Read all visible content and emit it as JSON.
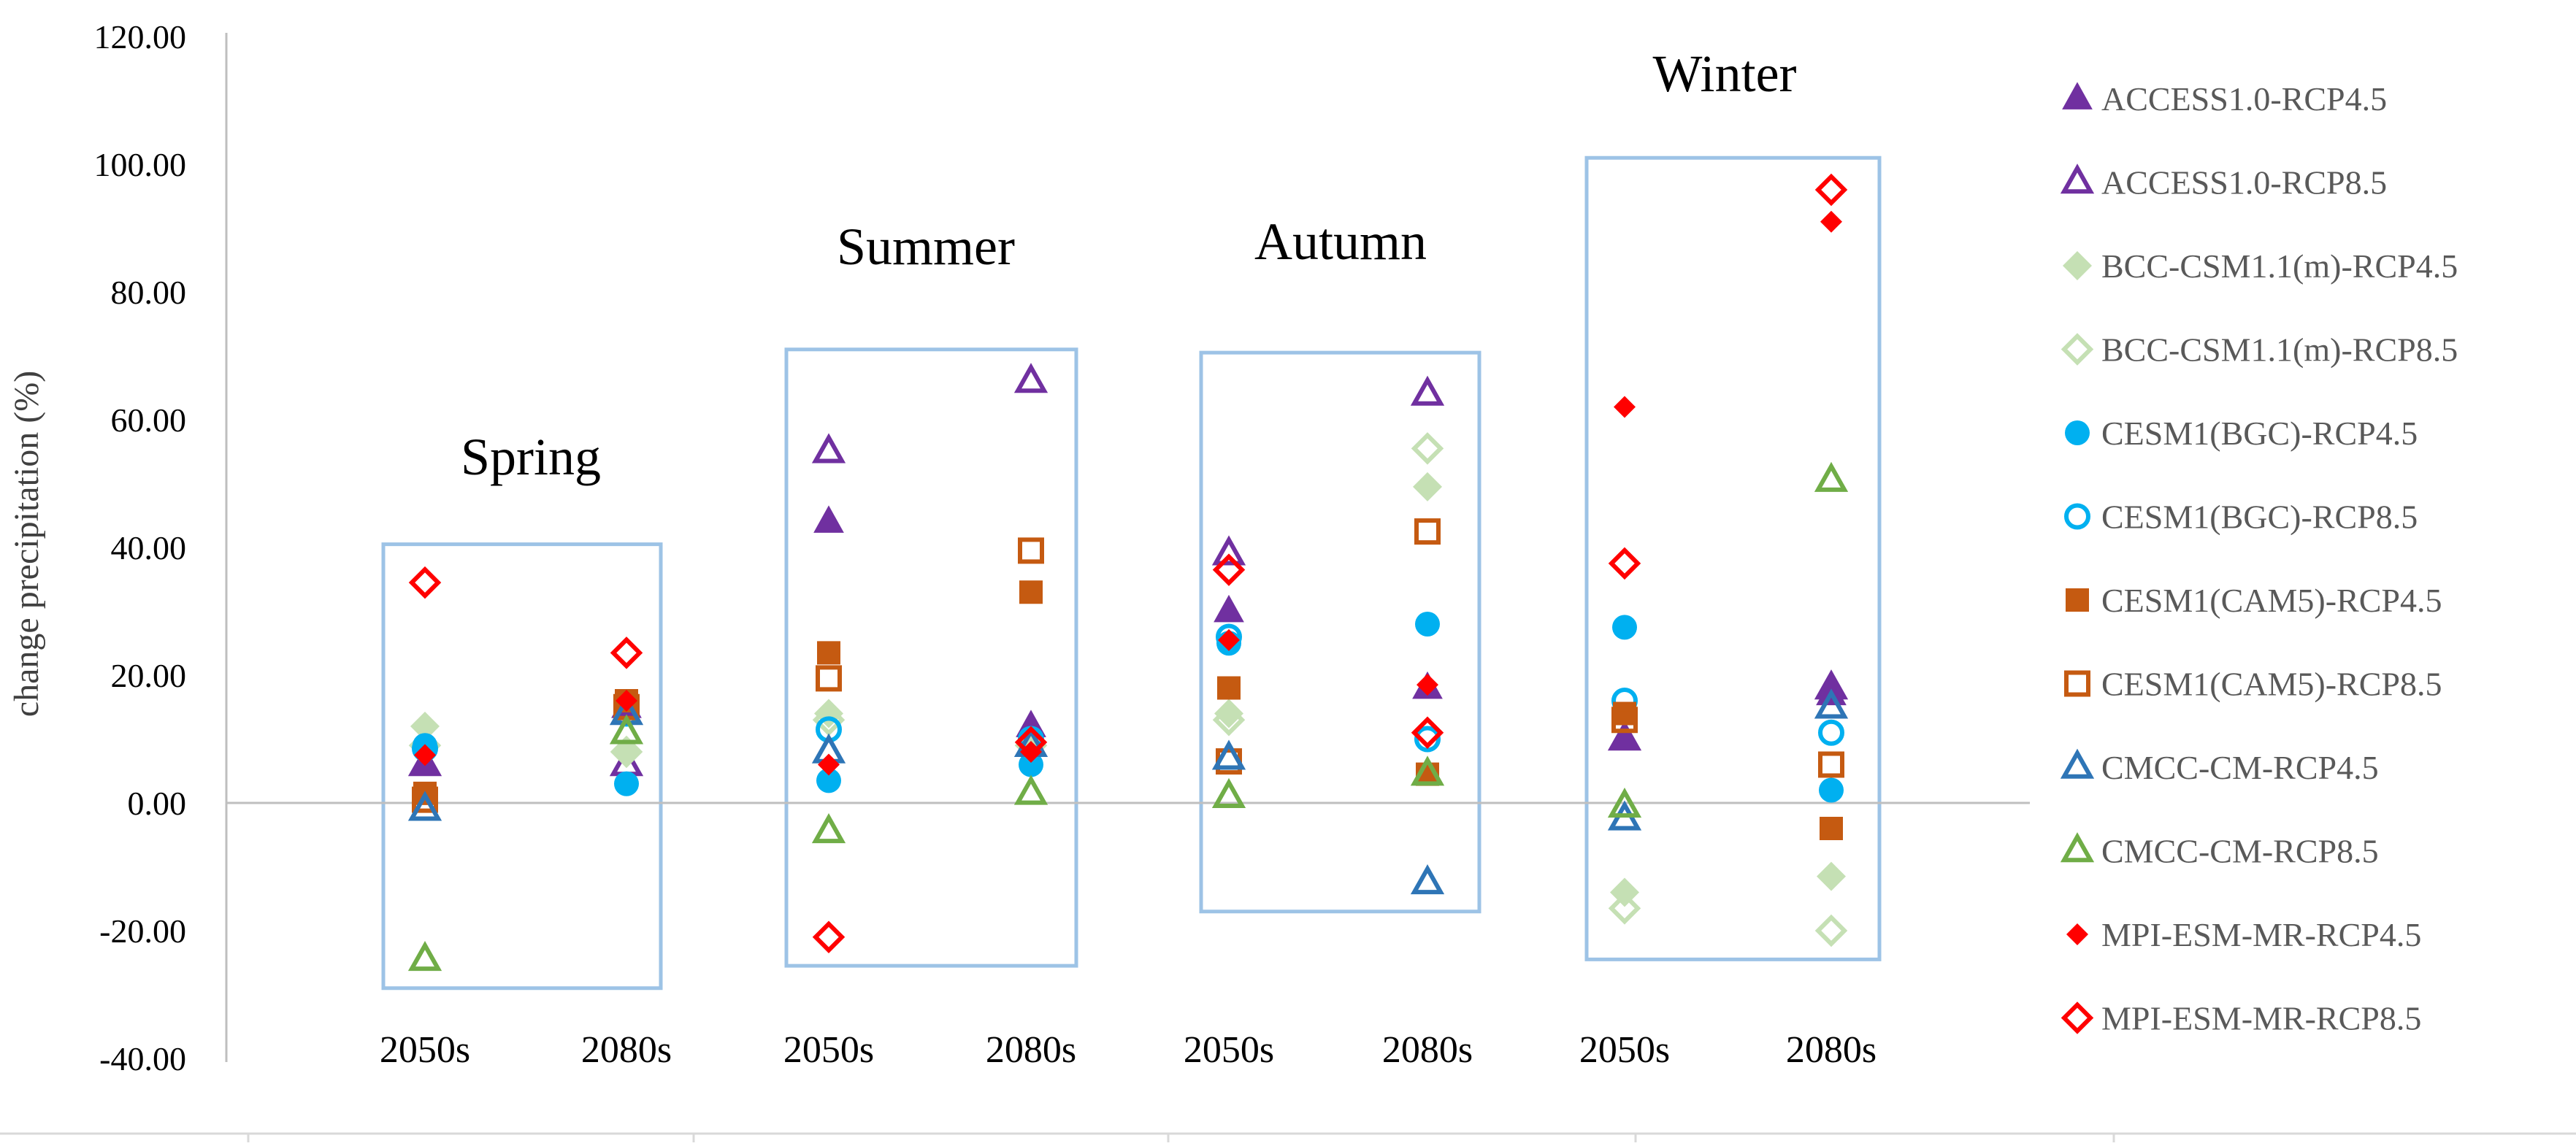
{
  "chart_data": {
    "type": "scatter",
    "title": "",
    "xlabel": "",
    "ylabel": "change precipitation (%)",
    "ylim": [
      -40,
      120
    ],
    "yticks": [
      "-40.00",
      "-20.00",
      "0.00",
      "20.00",
      "40.00",
      "60.00",
      "80.00",
      "100.00",
      "120.00"
    ],
    "grid": false,
    "legend_position": "right",
    "categories": [
      "2050s",
      "2080s",
      "2050s",
      "2080s",
      "2050s",
      "2080s",
      "2050s",
      "2080s"
    ],
    "seasons": [
      "Spring",
      "Summer",
      "Autumn",
      "Winter"
    ],
    "season_boxes": [
      {
        "name": "Spring",
        "range": [
          -29,
          40.5
        ]
      },
      {
        "name": "Summer",
        "range": [
          -25.5,
          71
        ]
      },
      {
        "name": "Autumn",
        "range": [
          -17,
          70.5
        ]
      },
      {
        "name": "Winter",
        "range": [
          -24.5,
          101
        ]
      }
    ],
    "colors": {
      "purple": "#7030a0",
      "green_light": "#c5e0b4",
      "cyan": "#00b0f0",
      "brown": "#c55a11",
      "blue": "#2e75b6",
      "green": "#70ad47",
      "red": "#ff0000",
      "box": "#9dc3e6",
      "axis": "#bfbfbf"
    },
    "series": [
      {
        "name": "ACCESS1.0-RCP4.5",
        "marker": "triangle",
        "filled": true,
        "color": "#7030a0",
        "values": [
          6,
          15,
          44,
          12,
          30,
          18,
          10,
          17
        ]
      },
      {
        "name": "ACCESS1.0-RCP8.5",
        "marker": "triangle",
        "filled": false,
        "color": "#7030a0",
        "values": [
          6,
          6,
          55,
          66,
          39,
          64,
          10,
          18
        ]
      },
      {
        "name": "BCC-CSM1.1(m)-RCP4.5",
        "marker": "diamond",
        "filled": true,
        "color": "#c5e0b4",
        "values": [
          12,
          8,
          14,
          9,
          14,
          49.5,
          -14,
          -11.5
        ]
      },
      {
        "name": "BCC-CSM1.1(m)-RCP8.5",
        "marker": "diamond",
        "filled": false,
        "color": "#c5e0b4",
        "values": [
          9,
          8,
          13,
          9,
          13,
          55.5,
          -16.5,
          -20
        ]
      },
      {
        "name": "CESM1(BGC)-RCP4.5",
        "marker": "circle",
        "filled": true,
        "color": "#00b0f0",
        "values": [
          9,
          3,
          3.5,
          6,
          25,
          28,
          27.5,
          2
        ]
      },
      {
        "name": "CESM1(BGC)-RCP8.5",
        "marker": "circle",
        "filled": false,
        "color": "#00b0f0",
        "values": [
          8.5,
          14,
          11.5,
          10,
          26,
          10,
          16,
          11
        ]
      },
      {
        "name": "CESM1(CAM5)-RCP4.5",
        "marker": "square",
        "filled": true,
        "color": "#c55a11",
        "values": [
          1.5,
          16,
          23.5,
          33,
          18,
          4.5,
          14,
          -4
        ]
      },
      {
        "name": "CESM1(CAM5)-RCP8.5",
        "marker": "square",
        "filled": false,
        "color": "#c55a11",
        "values": [
          0.5,
          15,
          19.5,
          39.5,
          6.5,
          42.5,
          13,
          6
        ]
      },
      {
        "name": "CMCC-CM-RCP4.5",
        "marker": "triangle",
        "filled": false,
        "color": "#2e75b6",
        "values": [
          -1,
          14,
          8,
          9,
          7,
          -12.5,
          -2.5,
          15
        ]
      },
      {
        "name": "CMCC-CM-RCP8.5",
        "marker": "triangle",
        "filled": false,
        "color": "#70ad47",
        "values": [
          -24.5,
          11,
          -4.5,
          1.5,
          1,
          4.5,
          -0.5,
          50.5
        ]
      },
      {
        "name": "MPI-ESM-MR-RCP4.5",
        "marker": "diamond-small",
        "filled": true,
        "color": "#ff0000",
        "values": [
          7.5,
          16,
          6,
          8,
          25.5,
          18.5,
          62,
          91
        ]
      },
      {
        "name": "MPI-ESM-MR-RCP8.5",
        "marker": "diamond",
        "filled": false,
        "color": "#ff0000",
        "values": [
          34.5,
          23.5,
          -21,
          9.5,
          36.5,
          11,
          37.5,
          96
        ]
      }
    ]
  }
}
